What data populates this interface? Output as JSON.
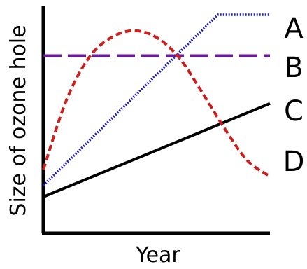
{
  "chart_data": {
    "type": "line",
    "title": "",
    "xlabel": "Year",
    "ylabel": "Size of ozone hole",
    "xlim": [
      0,
      10
    ],
    "ylim": [
      0,
      10
    ],
    "grid": false,
    "legend": "right",
    "series": [
      {
        "name": "A",
        "color": "#1f1fbf",
        "style": "dotted",
        "x": [
          0,
          7.7,
          10
        ],
        "y": [
          2.1,
          9.6,
          9.6
        ]
      },
      {
        "name": "B",
        "color": "#6a1b9a",
        "style": "dashed",
        "x": [
          0,
          10
        ],
        "y": [
          7.8,
          7.8
        ]
      },
      {
        "name": "C",
        "color": "#000000",
        "style": "solid",
        "x": [
          0,
          10
        ],
        "y": [
          1.6,
          5.7
        ]
      },
      {
        "name": "D",
        "color": "#cc1f1f",
        "style": "dashed",
        "x": [
          0,
          1,
          2,
          3,
          4,
          5,
          6,
          7,
          8,
          9,
          10
        ],
        "y": [
          2.8,
          5.8,
          7.7,
          8.6,
          8.9,
          8.6,
          7.7,
          6.2,
          4.6,
          3.2,
          2.5
        ]
      }
    ]
  }
}
